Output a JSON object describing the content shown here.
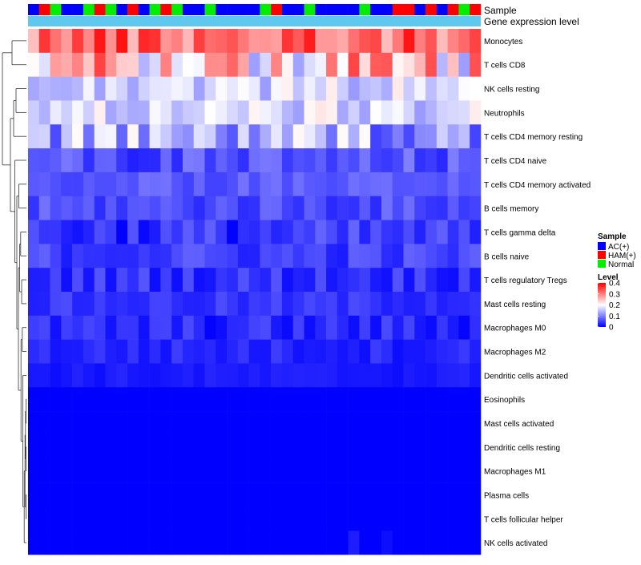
{
  "chart_data": {
    "type": "heatmap",
    "title": "",
    "annotation_tracks": {
      "sample_label": "Sample",
      "expression_label": "Gene expression level",
      "expression_color": "#5ec8ee",
      "sample_groups": [
        "ac",
        "ham",
        "nrm",
        "ac",
        "ac",
        "nrm",
        "ham",
        "nrm",
        "ac",
        "ham",
        "ac",
        "nrm",
        "ham",
        "nrm",
        "ac",
        "ac",
        "nrm",
        "ac",
        "ac",
        "ac",
        "ac",
        "nrm",
        "ham",
        "ac",
        "ac",
        "nrm",
        "ac",
        "ac",
        "ac",
        "ac",
        "nrm",
        "ac",
        "ac",
        "ham",
        "ham",
        "ac",
        "ham",
        "ac",
        "ham",
        "nrm",
        "ham"
      ]
    },
    "rows": [
      "Monocytes",
      "T cells CD8",
      "NK cells resting",
      "Neutrophils",
      "T cells CD4 memory resting",
      "T cells CD4 naive",
      "T cells CD4 memory activated",
      "B cells memory",
      "T cells gamma delta",
      "B cells naive",
      "T cells regulatory  Tregs",
      "Mast cells resting",
      "Macrophages M0",
      "Macrophages M2",
      "Dendritic cells activated",
      "Eosinophils",
      "Mast cells activated",
      "Dendritic cells resting",
      "Macrophages M1",
      "Plasma cells",
      "T cells follicular helper",
      "NK cells activated"
    ],
    "row_base": [
      0.32,
      0.24,
      0.17,
      0.17,
      0.13,
      0.06,
      0.07,
      0.06,
      0.04,
      0.05,
      0.04,
      0.04,
      0.03,
      0.03,
      0.02,
      0.0,
      0.0,
      0.0,
      0.0,
      0.0,
      0.0,
      0.0
    ],
    "row_spread": [
      0.07,
      0.12,
      0.05,
      0.05,
      0.08,
      0.04,
      0.02,
      0.03,
      0.04,
      0.03,
      0.03,
      0.02,
      0.03,
      0.02,
      0.01,
      0.0,
      0.0,
      0.0,
      0.0,
      0.0,
      0.0,
      0.03
    ],
    "n_columns": 41,
    "color_scale": {
      "min": 0,
      "max": 0.4,
      "low": "#0000ff",
      "mid": "#ffffff",
      "high": "#ff0000",
      "midpoint": 0.2
    },
    "legend": {
      "sample_title": "Sample",
      "sample_items": [
        {
          "key": "ac",
          "label": "AC(+)",
          "color": "#0000ff"
        },
        {
          "key": "ham",
          "label": "HAM(+)",
          "color": "#ff0000"
        },
        {
          "key": "nrm",
          "label": "Normal",
          "color": "#00ee00"
        }
      ],
      "level_title": "Level",
      "level_ticks": [
        "0.4",
        "0.3",
        "0.2",
        "0.1",
        "0"
      ],
      "level_values": [
        0.4,
        0.3,
        0.2,
        0.1,
        0
      ]
    },
    "dendrogram": "left (row clustering)"
  }
}
